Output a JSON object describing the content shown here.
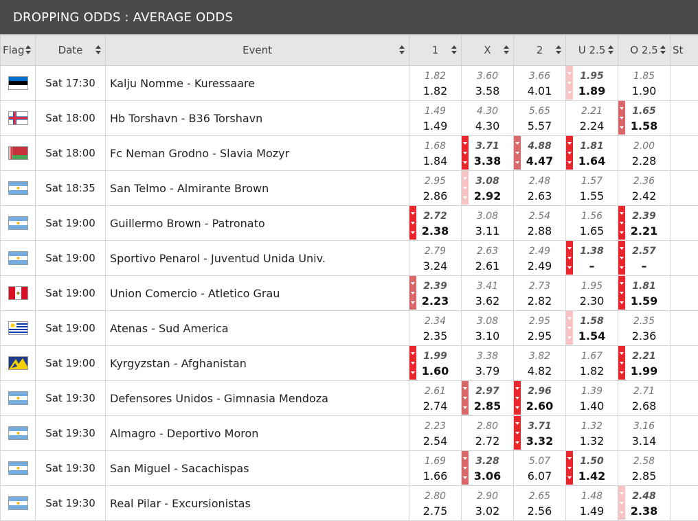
{
  "title": "DROPPING ODDS : AVERAGE ODDS",
  "headers": [
    "Flag",
    "Date",
    "Event",
    "1",
    "X",
    "2",
    "U 2.5",
    "O 2.5",
    "St"
  ],
  "rows": [
    {
      "flag": "estonia",
      "date": "Sat 17:30",
      "event": "Kalju Nomme - Kuressaare",
      "odds": [
        [
          "1.82",
          "1.82",
          0
        ],
        [
          "3.60",
          "3.58",
          0
        ],
        [
          "3.66",
          "4.01",
          0
        ],
        [
          "1.95",
          "1.89",
          3
        ],
        [
          "1.85",
          "1.90",
          0
        ]
      ]
    },
    {
      "flag": "faroe-islands",
      "date": "Sat 18:00",
      "event": "Hb Torshavn - B36 Torshavn",
      "odds": [
        [
          "1.49",
          "1.49",
          0
        ],
        [
          "4.30",
          "4.30",
          0
        ],
        [
          "5.65",
          "5.57",
          0
        ],
        [
          "2.21",
          "2.24",
          0
        ],
        [
          "1.65",
          "1.58",
          2
        ]
      ]
    },
    {
      "flag": "belarus",
      "date": "Sat 18:00",
      "event": "Fc Neman Grodno - Slavia Mozyr",
      "odds": [
        [
          "1.68",
          "1.84",
          0
        ],
        [
          "3.71",
          "3.38",
          1
        ],
        [
          "4.88",
          "4.47",
          2
        ],
        [
          "1.81",
          "1.64",
          1
        ],
        [
          "2.00",
          "2.28",
          0
        ]
      ]
    },
    {
      "flag": "argentina",
      "date": "Sat 18:35",
      "event": "San Telmo - Almirante Brown",
      "odds": [
        [
          "2.95",
          "2.86",
          0
        ],
        [
          "3.08",
          "2.92",
          3
        ],
        [
          "2.48",
          "2.63",
          0
        ],
        [
          "1.57",
          "1.55",
          0
        ],
        [
          "2.36",
          "2.42",
          0
        ]
      ]
    },
    {
      "flag": "argentina",
      "date": "Sat 19:00",
      "event": "Guillermo Brown - Patronato",
      "odds": [
        [
          "2.72",
          "2.38",
          1
        ],
        [
          "3.08",
          "3.11",
          0
        ],
        [
          "2.54",
          "2.88",
          0
        ],
        [
          "1.56",
          "1.65",
          0
        ],
        [
          "2.39",
          "2.21",
          1
        ]
      ]
    },
    {
      "flag": "argentina",
      "date": "Sat 19:00",
      "event": "Sportivo Penarol - Juventud Unida Univ.",
      "odds": [
        [
          "2.79",
          "3.24",
          0
        ],
        [
          "2.63",
          "2.61",
          0
        ],
        [
          "2.49",
          "2.49",
          0
        ],
        [
          "1.38",
          "–",
          1
        ],
        [
          "2.57",
          "–",
          1
        ]
      ]
    },
    {
      "flag": "peru",
      "date": "Sat 19:00",
      "event": "Union Comercio - Atletico Grau",
      "odds": [
        [
          "2.39",
          "2.23",
          2
        ],
        [
          "3.41",
          "3.62",
          0
        ],
        [
          "2.73",
          "2.82",
          0
        ],
        [
          "1.95",
          "2.30",
          0
        ],
        [
          "1.81",
          "1.59",
          1
        ]
      ]
    },
    {
      "flag": "uruguay",
      "date": "Sat 19:00",
      "event": "Atenas - Sud America",
      "odds": [
        [
          "2.34",
          "2.35",
          0
        ],
        [
          "3.08",
          "3.10",
          0
        ],
        [
          "2.95",
          "2.95",
          0
        ],
        [
          "1.58",
          "1.54",
          3
        ],
        [
          "2.35",
          "2.36",
          0
        ]
      ]
    },
    {
      "flag": "kyrgyzstan",
      "date": "Sat 19:00",
      "event": "Kyrgyzstan - Afghanistan",
      "odds": [
        [
          "1.99",
          "1.60",
          1
        ],
        [
          "3.38",
          "3.79",
          0
        ],
        [
          "3.82",
          "4.82",
          0
        ],
        [
          "1.67",
          "1.82",
          0
        ],
        [
          "2.21",
          "1.99",
          1
        ]
      ]
    },
    {
      "flag": "argentina",
      "date": "Sat 19:30",
      "event": "Defensores Unidos - Gimnasia Mendoza",
      "odds": [
        [
          "2.61",
          "2.74",
          0
        ],
        [
          "2.97",
          "2.85",
          2
        ],
        [
          "2.96",
          "2.60",
          1
        ],
        [
          "1.39",
          "1.40",
          0
        ],
        [
          "2.71",
          "2.68",
          0
        ]
      ]
    },
    {
      "flag": "argentina",
      "date": "Sat 19:30",
      "event": "Almagro - Deportivo Moron",
      "odds": [
        [
          "2.23",
          "2.54",
          0
        ],
        [
          "2.80",
          "2.72",
          0
        ],
        [
          "3.71",
          "3.32",
          1
        ],
        [
          "1.32",
          "1.32",
          0
        ],
        [
          "3.16",
          "3.14",
          0
        ]
      ]
    },
    {
      "flag": "argentina",
      "date": "Sat 19:30",
      "event": "San Miguel - Sacachispas",
      "odds": [
        [
          "1.69",
          "1.66",
          0
        ],
        [
          "3.28",
          "3.06",
          2
        ],
        [
          "5.07",
          "6.07",
          0
        ],
        [
          "1.50",
          "1.42",
          1
        ],
        [
          "2.58",
          "2.85",
          0
        ]
      ]
    },
    {
      "flag": "argentina",
      "date": "Sat 19:30",
      "event": "Real Pilar - Excursionistas",
      "odds": [
        [
          "2.80",
          "2.75",
          0
        ],
        [
          "2.90",
          "3.02",
          0
        ],
        [
          "2.65",
          "2.56",
          0
        ],
        [
          "1.48",
          "1.49",
          0
        ],
        [
          "2.48",
          "2.38",
          3
        ]
      ]
    }
  ],
  "colors": {
    "header_bg": "#4a4a4a",
    "drop_strong": "#e8262b",
    "drop_medium": "#d9686a",
    "drop_light": "#f7c3c4"
  }
}
